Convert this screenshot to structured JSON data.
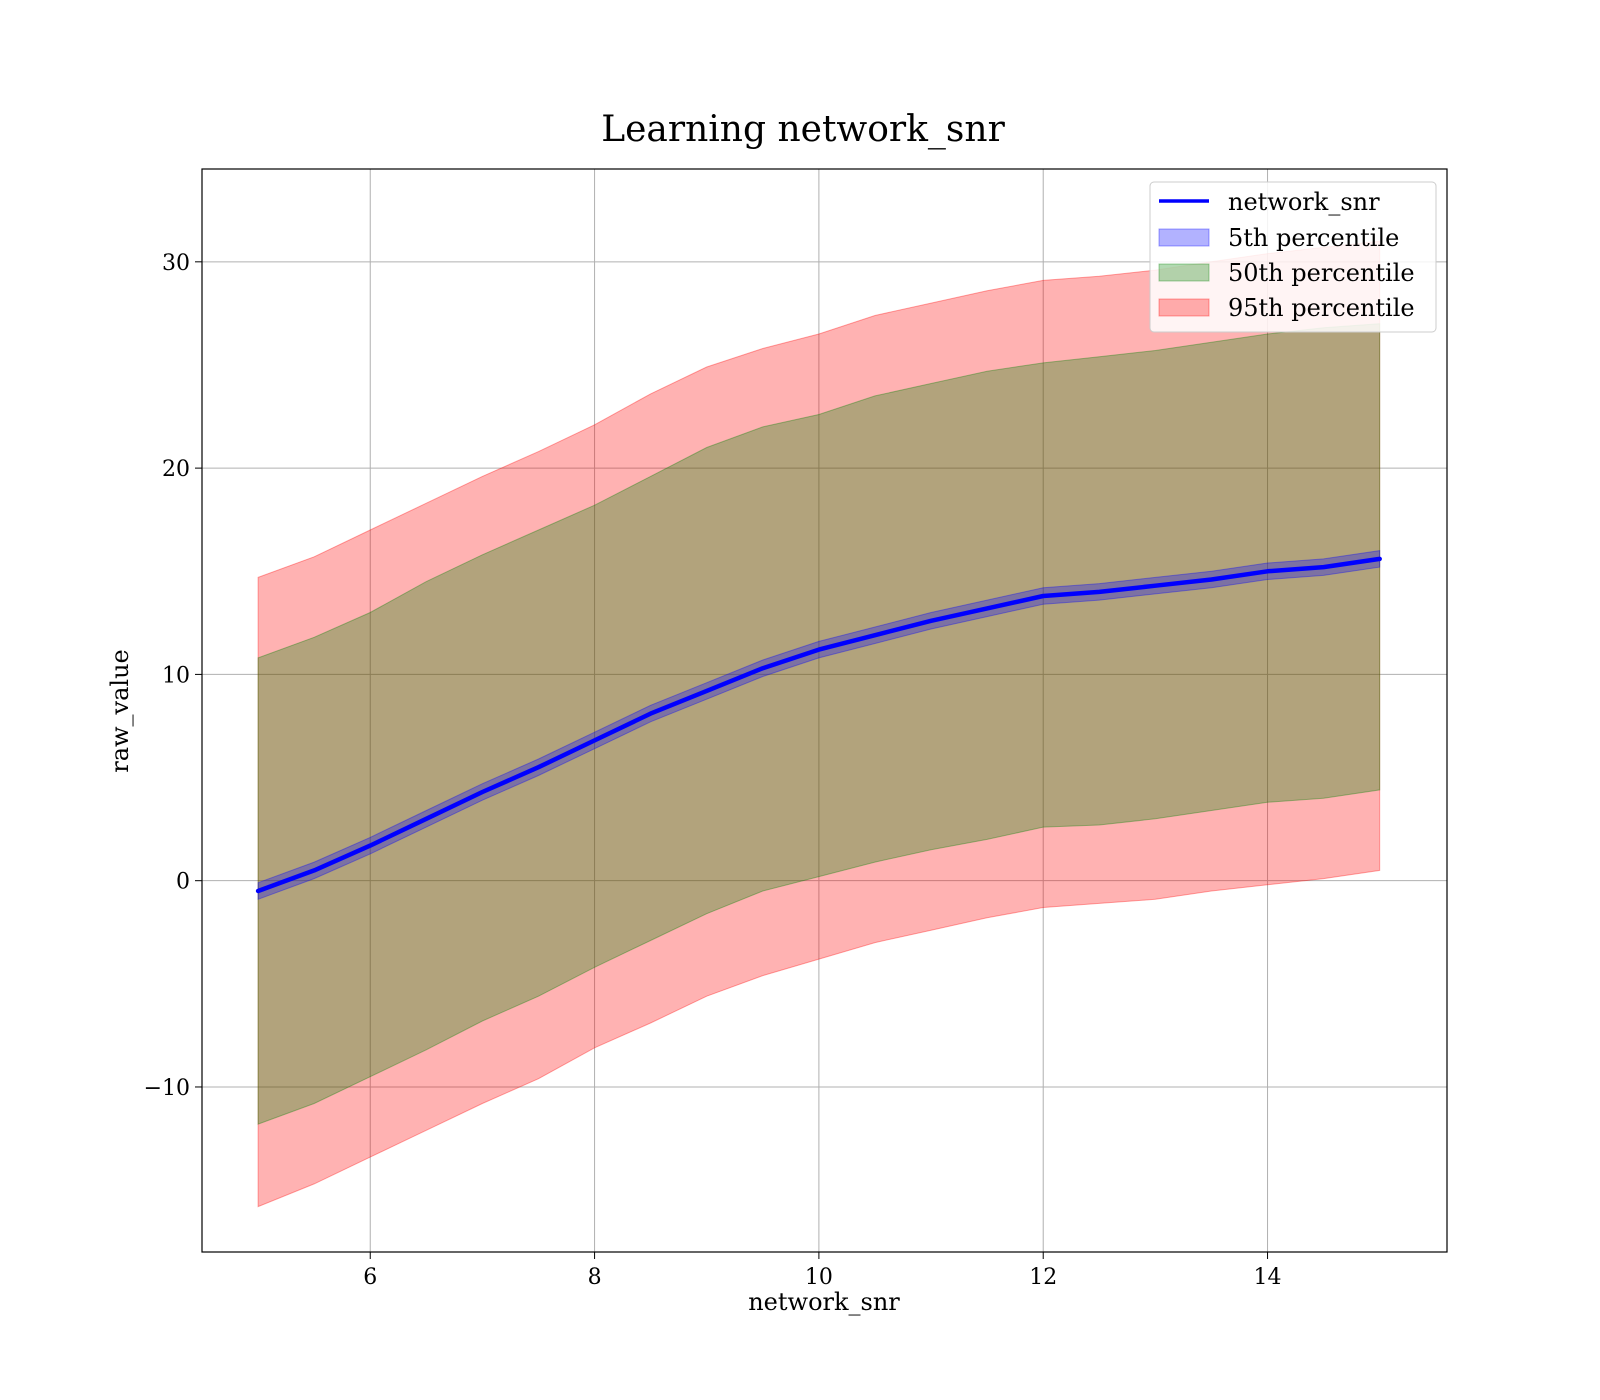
{
  "chart_data": {
    "type": "area",
    "title": "Learning network_snr",
    "xlabel": "network_snr",
    "ylabel": "raw_value",
    "xlim": [
      4.5,
      15.6
    ],
    "ylim": [
      -18,
      34.5
    ],
    "xticks": [
      6,
      8,
      10,
      12,
      14
    ],
    "yticks": [
      -10,
      0,
      10,
      20,
      30
    ],
    "xtick_labels": [
      "6",
      "8",
      "10",
      "12",
      "14"
    ],
    "ytick_labels": [
      "−10",
      "0",
      "10",
      "20",
      "30"
    ],
    "grid": true,
    "legend_position": "top-right",
    "x": [
      5,
      5.5,
      6,
      6.5,
      7,
      7.5,
      8,
      8.5,
      9,
      9.5,
      10,
      10.5,
      11,
      11.5,
      12,
      12.5,
      13,
      13.5,
      14,
      14.5,
      15
    ],
    "series": [
      {
        "name": "network_snr",
        "kind": "line",
        "color": "#0000ff",
        "values": [
          -0.5,
          0.5,
          1.7,
          3.0,
          4.3,
          5.5,
          6.8,
          8.1,
          9.2,
          10.3,
          11.2,
          11.9,
          12.6,
          13.2,
          13.8,
          14.0,
          14.3,
          14.6,
          15.0,
          15.2,
          15.6
        ]
      },
      {
        "name": "5th percentile",
        "kind": "band",
        "color": "#0000ff",
        "opacity": 0.3,
        "lower": [
          -0.9,
          0.1,
          1.3,
          2.6,
          3.9,
          5.1,
          6.4,
          7.7,
          8.8,
          9.9,
          10.8,
          11.5,
          12.2,
          12.8,
          13.4,
          13.6,
          13.9,
          14.2,
          14.6,
          14.8,
          15.2
        ],
        "upper": [
          -0.1,
          0.9,
          2.1,
          3.4,
          4.7,
          5.9,
          7.2,
          8.5,
          9.6,
          10.7,
          11.6,
          12.3,
          13.0,
          13.6,
          14.2,
          14.4,
          14.7,
          15.0,
          15.4,
          15.6,
          16.0
        ]
      },
      {
        "name": "50th percentile",
        "kind": "band",
        "color": "#008000",
        "opacity": 0.3,
        "lower": [
          -11.8,
          -10.8,
          -9.5,
          -8.2,
          -6.8,
          -5.6,
          -4.2,
          -2.9,
          -1.6,
          -0.5,
          0.2,
          0.9,
          1.5,
          2.0,
          2.6,
          2.7,
          3.0,
          3.4,
          3.8,
          4.0,
          4.4
        ],
        "upper": [
          10.8,
          11.8,
          13.0,
          14.5,
          15.8,
          17.0,
          18.2,
          19.6,
          21.0,
          22.0,
          22.6,
          23.5,
          24.1,
          24.7,
          25.1,
          25.4,
          25.7,
          26.1,
          26.5,
          26.8,
          27.0
        ]
      },
      {
        "name": "95th percentile",
        "kind": "band",
        "color": "#ff0000",
        "opacity": 0.3,
        "lower": [
          -15.8,
          -14.7,
          -13.4,
          -12.1,
          -10.8,
          -9.6,
          -8.1,
          -6.9,
          -5.6,
          -4.6,
          -3.8,
          -3.0,
          -2.4,
          -1.8,
          -1.3,
          -1.1,
          -0.9,
          -0.5,
          -0.2,
          0.1,
          0.5
        ],
        "upper": [
          14.7,
          15.7,
          17.0,
          18.3,
          19.6,
          20.8,
          22.1,
          23.6,
          24.9,
          25.8,
          26.5,
          27.4,
          28.0,
          28.6,
          29.1,
          29.3,
          29.6,
          30.0,
          30.4,
          30.7,
          31.0
        ]
      }
    ]
  }
}
